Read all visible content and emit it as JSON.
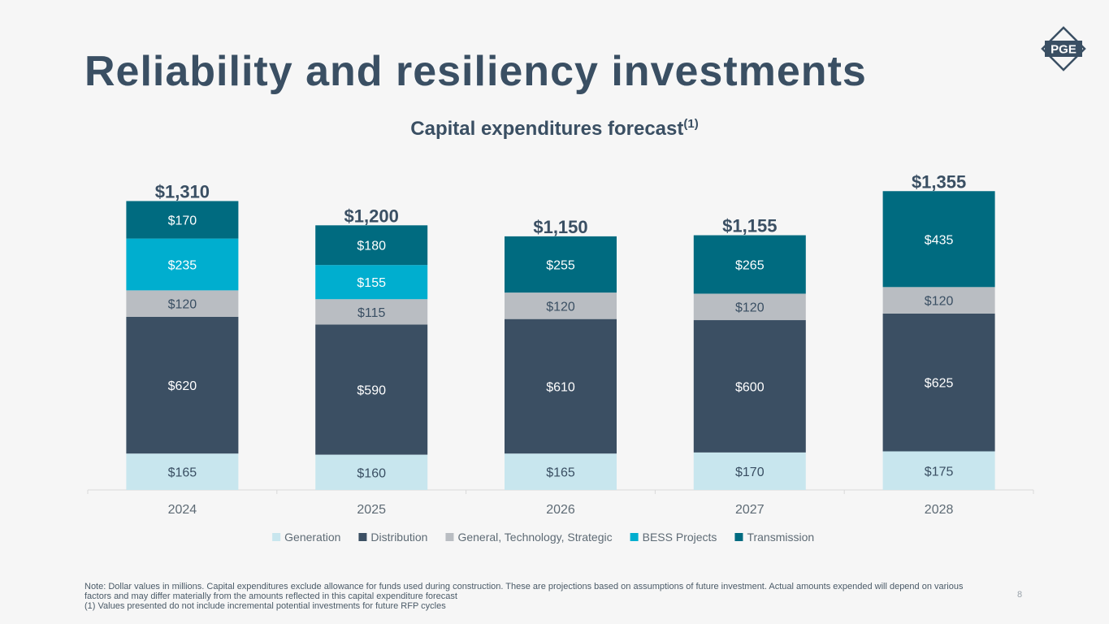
{
  "slide": {
    "title": "Reliability and resiliency investments",
    "subtitle": "Capital expenditures forecast",
    "subtitle_superscript": "(1)",
    "logo_text": "PGE",
    "note_line1": "Note: Dollar values in millions. Capital expenditures exclude allowance for funds used during construction. These are projections based on assumptions of future investment. Actual amounts expended will depend on various factors and may differ materially from the amounts reflected in this capital expenditure forecast",
    "note_line2": "(1) Values presented do not include incremental potential investments for future RFP cycles",
    "page_number": "8"
  },
  "chart_data": {
    "type": "bar",
    "stacked": true,
    "title": "Capital expenditures forecast(1)",
    "unit": "$ millions",
    "categories": [
      "2024",
      "2025",
      "2026",
      "2027",
      "2028"
    ],
    "totals": [
      1310,
      1200,
      1150,
      1155,
      1355
    ],
    "total_labels": [
      "$1,310",
      "$1,200",
      "$1,150",
      "$1,155",
      "$1,355"
    ],
    "series": [
      {
        "name": "Generation",
        "color": "#c8e6ee",
        "label_color": "#3a4f63",
        "values": [
          165,
          160,
          165,
          170,
          175
        ]
      },
      {
        "name": "Distribution",
        "color": "#3b4f63",
        "label_color": "#ffffff",
        "values": [
          620,
          590,
          610,
          600,
          625
        ]
      },
      {
        "name": "General, Technology, Strategic",
        "color": "#b9bdc2",
        "label_color": "#3a4f63",
        "values": [
          120,
          115,
          120,
          120,
          120
        ]
      },
      {
        "name": "BESS Projects",
        "color": "#00aecf",
        "label_color": "#ffffff",
        "values": [
          235,
          155,
          0,
          0,
          0
        ]
      },
      {
        "name": "Transmission",
        "color": "#006b80",
        "label_color": "#ffffff",
        "values": [
          170,
          180,
          255,
          265,
          435
        ]
      }
    ],
    "legend_position": "bottom",
    "grid": false
  }
}
